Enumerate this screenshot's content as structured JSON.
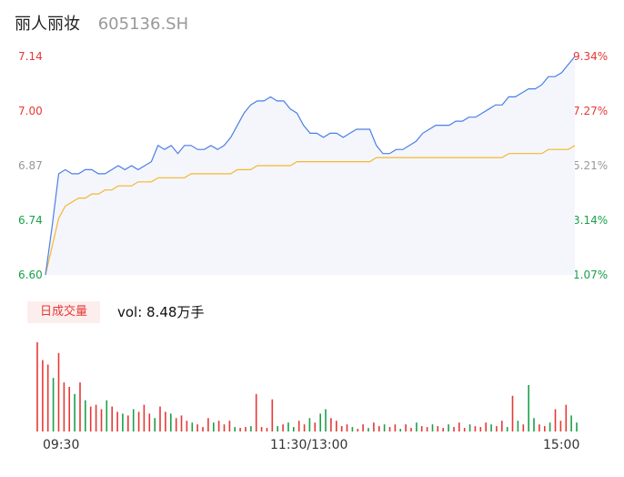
{
  "header": {
    "name": "丽人丽妆",
    "code": "605136.SH"
  },
  "colors": {
    "price_line": "#4a7fe6",
    "avg_line": "#f5b730",
    "up": "#e53935",
    "down": "#1aa04a",
    "neutral": "#999999",
    "area": "#f4f6fc"
  },
  "left_axis": [
    {
      "label": "7.14",
      "color": "#e53935"
    },
    {
      "label": "7.00",
      "color": "#e53935"
    },
    {
      "label": "6.87",
      "color": "#999999"
    },
    {
      "label": "6.74",
      "color": "#1aa04a"
    },
    {
      "label": "6.60",
      "color": "#1aa04a"
    }
  ],
  "right_axis": [
    {
      "label": "9.34%",
      "color": "#e53935"
    },
    {
      "label": "7.27%",
      "color": "#e53935"
    },
    {
      "label": "5.21%",
      "color": "#999999"
    },
    {
      "label": "3.14%",
      "color": "#1aa04a"
    },
    {
      "label": "1.07%",
      "color": "#1aa04a"
    }
  ],
  "volume_panel": {
    "tag": "日成交量",
    "text": "vol: 8.48万手"
  },
  "x_axis": [
    "09:30",
    "11:30/13:00",
    "15:00"
  ],
  "chart_data": {
    "type": "line",
    "title": "丽人丽妆 605136.SH",
    "ylim": [
      6.6,
      7.14
    ],
    "right_ylim_pct": [
      1.07,
      9.34
    ],
    "x_ticks": [
      "09:30",
      "11:30/13:00",
      "15:00"
    ],
    "series": [
      {
        "values": [
          6.6,
          6.72,
          6.85,
          6.86,
          6.85,
          6.85,
          6.86,
          6.86,
          6.85,
          6.85,
          6.86,
          6.87,
          6.86,
          6.87,
          6.86,
          6.87,
          6.88,
          6.92,
          6.91,
          6.92,
          6.9,
          6.92,
          6.92,
          6.91,
          6.91,
          6.92,
          6.91,
          6.92,
          6.94,
          6.97,
          7.0,
          7.02,
          7.03,
          7.03,
          7.04,
          7.03,
          7.03,
          7.01,
          7.0,
          6.97,
          6.95,
          6.95,
          6.94,
          6.95,
          6.95,
          6.94,
          6.95,
          6.96,
          6.96,
          6.96,
          6.92,
          6.9,
          6.9,
          6.91,
          6.91,
          6.92,
          6.93,
          6.95,
          6.96,
          6.97,
          6.97,
          6.97,
          6.98,
          6.98,
          6.99,
          6.99,
          7.0,
          7.01,
          7.02,
          7.02,
          7.04,
          7.04,
          7.05,
          7.06,
          7.06,
          7.07,
          7.09,
          7.09,
          7.1,
          7.12,
          7.14
        ]
      },
      {
        "values": [
          6.6,
          6.67,
          6.74,
          6.77,
          6.78,
          6.79,
          6.79,
          6.8,
          6.8,
          6.81,
          6.81,
          6.82,
          6.82,
          6.82,
          6.83,
          6.83,
          6.83,
          6.84,
          6.84,
          6.84,
          6.84,
          6.84,
          6.85,
          6.85,
          6.85,
          6.85,
          6.85,
          6.85,
          6.85,
          6.86,
          6.86,
          6.86,
          6.87,
          6.87,
          6.87,
          6.87,
          6.87,
          6.87,
          6.88,
          6.88,
          6.88,
          6.88,
          6.88,
          6.88,
          6.88,
          6.88,
          6.88,
          6.88,
          6.88,
          6.88,
          6.89,
          6.89,
          6.89,
          6.89,
          6.89,
          6.89,
          6.89,
          6.89,
          6.89,
          6.89,
          6.89,
          6.89,
          6.89,
          6.89,
          6.89,
          6.89,
          6.89,
          6.89,
          6.89,
          6.89,
          6.9,
          6.9,
          6.9,
          6.9,
          6.9,
          6.9,
          6.91,
          6.91,
          6.91,
          6.91,
          6.92
        ]
      }
    ],
    "volume": {
      "values": [
        100,
        80,
        75,
        60,
        88,
        55,
        50,
        42,
        55,
        35,
        28,
        30,
        25,
        35,
        28,
        22,
        20,
        18,
        25,
        22,
        30,
        20,
        15,
        28,
        22,
        20,
        15,
        18,
        12,
        10,
        8,
        5,
        15,
        10,
        12,
        8,
        12,
        5,
        4,
        5,
        6,
        42,
        5,
        4,
        36,
        6,
        8,
        10,
        5,
        12,
        8,
        15,
        10,
        20,
        25,
        15,
        12,
        6,
        8,
        5,
        3,
        8,
        4,
        10,
        6,
        8,
        5,
        8,
        3,
        8,
        4,
        10,
        6,
        5,
        8,
        6,
        4,
        8,
        5,
        10,
        4,
        8,
        6,
        5,
        10,
        8,
        6,
        12,
        5,
        40,
        12,
        8,
        52,
        15,
        8,
        6,
        10,
        25,
        12,
        30,
        18,
        10
      ],
      "colors": [
        "up",
        "up",
        "up",
        "down",
        "up",
        "up",
        "up",
        "down",
        "up",
        "down",
        "up",
        "up",
        "up",
        "down",
        "up",
        "up",
        "down",
        "up",
        "down",
        "up",
        "up",
        "up",
        "down",
        "up",
        "up",
        "down",
        "up",
        "up",
        "up",
        "down",
        "up",
        "up",
        "up",
        "down",
        "up",
        "up",
        "up",
        "down",
        "up",
        "up",
        "down",
        "up",
        "up",
        "up",
        "up",
        "down",
        "up",
        "down",
        "down",
        "up",
        "up",
        "down",
        "up",
        "down",
        "down",
        "up",
        "up",
        "up",
        "up",
        "down",
        "up",
        "up",
        "down",
        "up",
        "up",
        "down",
        "up",
        "up",
        "down",
        "up",
        "up",
        "down",
        "up",
        "up",
        "down",
        "up",
        "up",
        "down",
        "up",
        "up",
        "up",
        "down",
        "up",
        "up",
        "up",
        "down",
        "up",
        "up",
        "down",
        "up",
        "down",
        "up",
        "down",
        "down",
        "up",
        "up",
        "down",
        "up",
        "up",
        "up",
        "down",
        "down"
      ]
    }
  }
}
